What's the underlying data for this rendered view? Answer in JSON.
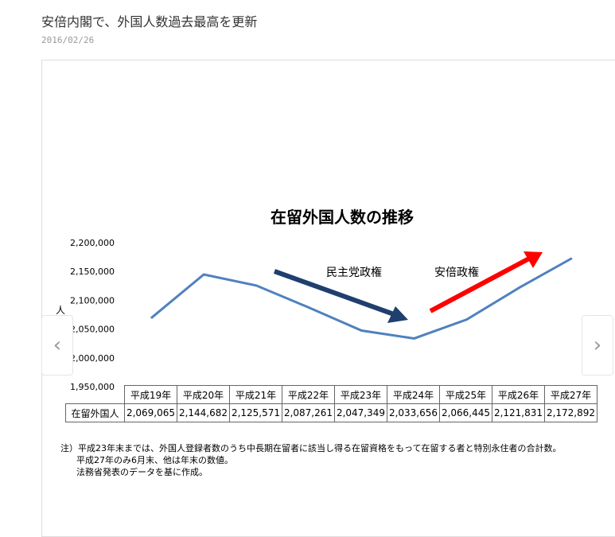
{
  "article": {
    "title": "安倍内閣で、外国人数過去最高を更新",
    "date": "2016/02/26"
  },
  "nav": {
    "prev": "‹",
    "next": "›",
    "prev_icon": "chevron-left-icon",
    "next_icon": "chevron-right-icon"
  },
  "chart_data": {
    "type": "line",
    "title": "在留外国人数の推移",
    "ylabel": "人",
    "xlabel": "",
    "ylim": [
      1950000,
      2200000
    ],
    "yticks": [
      "2,200,000",
      "2,150,000",
      "2,100,000",
      "2,050,000",
      "2,000,000",
      "1,950,000"
    ],
    "categories": [
      "平成19年",
      "平成20年",
      "平成21年",
      "平成22年",
      "平成23年",
      "平成24年",
      "平成25年",
      "平成26年",
      "平成27年"
    ],
    "series": [
      {
        "name": "在留外国人",
        "values": [
          2069065,
          2144682,
          2125571,
          2087261,
          2047349,
          2033656,
          2066445,
          2121831,
          2172892
        ],
        "labels": [
          "2,069,065",
          "2,144,682",
          "2,125,571",
          "2,087,261",
          "2,047,349",
          "2,033,656",
          "2,066,445",
          "2,121,831",
          "2,172,892"
        ],
        "color": "#4f81bd"
      }
    ],
    "annotations": [
      {
        "text": "民主党政権",
        "arrow_color": "#1f3f6e",
        "direction": "down"
      },
      {
        "text": "安倍政権",
        "arrow_color": "#ff0000",
        "direction": "up"
      }
    ],
    "grid": false,
    "legend": "data-table"
  },
  "notes": [
    "注）平成23年末までは、外国人登録者数のうち中長期在留者に該当し得る在留資格をもって在留する者と特別永住者の合計数。",
    "平成27年のみ6月末、他は年末の数値。",
    "法務省発表のデータを基に作成。"
  ]
}
